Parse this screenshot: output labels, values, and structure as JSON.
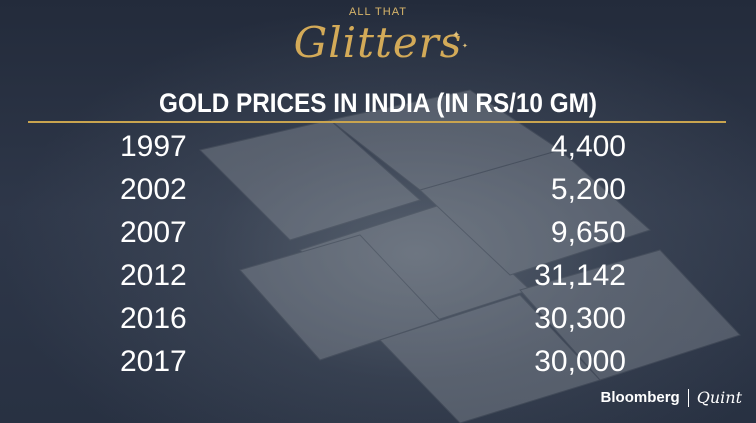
{
  "header": {
    "kicker": "ALL THAT",
    "brand": "Glitters"
  },
  "chart_data": {
    "type": "table",
    "title": "GOLD PRICES IN INDIA (IN RS/10 GM)",
    "columns": [
      "",
      ""
    ],
    "rows": [
      {
        "year": "1997",
        "value": "4,400"
      },
      {
        "year": "2002",
        "value": "5,200"
      },
      {
        "year": "2007",
        "value": "9,650"
      },
      {
        "year": "2012",
        "value": "31,142"
      },
      {
        "year": "2016",
        "value": "30,300"
      },
      {
        "year": "2017",
        "value": "30,000"
      }
    ]
  },
  "footer": {
    "publisher": "Bloomberg",
    "partner": "Quint"
  },
  "colors": {
    "accent": "#c9a44f",
    "text": "#ffffff",
    "background": "#2b3446"
  }
}
